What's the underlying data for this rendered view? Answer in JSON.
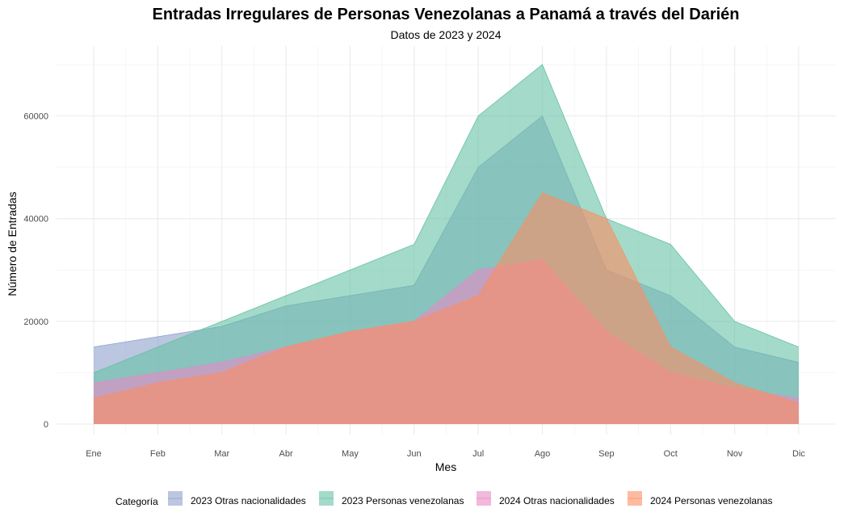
{
  "chart_data": {
    "type": "area",
    "title": "Entradas Irregulares de Personas Venezolanas a Panamá a través del Darién",
    "subtitle": "Datos de 2023 y 2024",
    "xlabel": "Mes",
    "ylabel": "Número de Entradas",
    "categories": [
      "Ene",
      "Feb",
      "Mar",
      "Abr",
      "May",
      "Jun",
      "Jul",
      "Ago",
      "Sep",
      "Oct",
      "Nov",
      "Dic"
    ],
    "ylim": [
      0,
      72000
    ],
    "yticks": [
      0,
      20000,
      40000,
      60000
    ],
    "grid": true,
    "legend_title": "Categoría",
    "legend_position": "bottom",
    "series": [
      {
        "name": "2023 Otras nacionalidades",
        "color": "#8da0cb",
        "values": [
          15000,
          17000,
          19000,
          23000,
          25000,
          27000,
          50000,
          60000,
          30000,
          25000,
          15000,
          12000
        ]
      },
      {
        "name": "2023 Personas venezolanas",
        "color": "#66c2a5",
        "values": [
          10000,
          15000,
          20000,
          25000,
          30000,
          35000,
          60000,
          70000,
          40000,
          35000,
          20000,
          15000
        ]
      },
      {
        "name": "2024 Otras nacionalidades",
        "color": "#e78ac3",
        "values": [
          8000,
          10000,
          12000,
          15000,
          18000,
          20000,
          30000,
          32000,
          18000,
          10000,
          7000,
          5000
        ]
      },
      {
        "name": "2024 Personas venezolanas",
        "color": "#fc8d62",
        "values": [
          5000,
          8000,
          10000,
          15000,
          18000,
          20000,
          25000,
          45000,
          40000,
          15000,
          8000,
          4000
        ]
      }
    ]
  }
}
